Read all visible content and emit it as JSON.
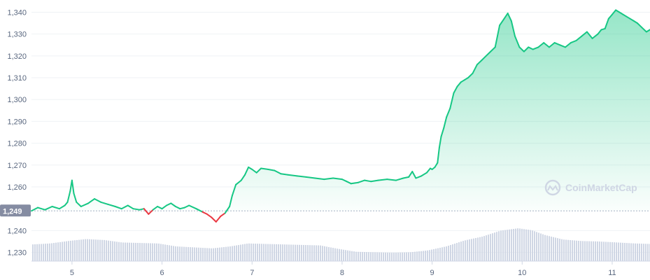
{
  "chart_data": {
    "type": "area",
    "y_ticks": [
      "1,230",
      "1,240",
      "1,249",
      "1,260",
      "1,270",
      "1,280",
      "1,290",
      "1,300",
      "1,310",
      "1,320",
      "1,330",
      "1,340"
    ],
    "ylim": [
      1226,
      1344
    ],
    "y_tick_values": [
      1230,
      1240,
      1260,
      1270,
      1280,
      1290,
      1300,
      1310,
      1320,
      1330,
      1340
    ],
    "y_tick_labels": [
      "1,230",
      "1,240",
      "1,260",
      "1,270",
      "1,280",
      "1,290",
      "1,300",
      "1,310",
      "1,320",
      "1,330",
      "1,340"
    ],
    "x_ticks": [
      "5",
      "6",
      "7",
      "8",
      "9",
      "10",
      "11"
    ],
    "x_tick_values": [
      5,
      6,
      7,
      8,
      9,
      10,
      11
    ],
    "xlim": [
      4.55,
      11.42
    ],
    "baseline": 1249,
    "baseline_label": "1,249",
    "grid": true,
    "colors": {
      "up": "#16c784",
      "down": "#ea3943",
      "volume": "#cfd6e4",
      "baseline_tag": "#858ca2"
    },
    "watermark": "CoinMarketCap",
    "price": [
      [
        4.55,
        1249.0
      ],
      [
        4.62,
        1250.5
      ],
      [
        4.7,
        1249.5
      ],
      [
        4.78,
        1251.0
      ],
      [
        4.86,
        1250.0
      ],
      [
        4.92,
        1251.5
      ],
      [
        4.95,
        1253.0
      ],
      [
        4.98,
        1258.0
      ],
      [
        5.0,
        1263.0
      ],
      [
        5.02,
        1257.0
      ],
      [
        5.05,
        1253.0
      ],
      [
        5.1,
        1251.0
      ],
      [
        5.18,
        1252.5
      ],
      [
        5.25,
        1254.5
      ],
      [
        5.32,
        1253.0
      ],
      [
        5.4,
        1252.0
      ],
      [
        5.48,
        1251.0
      ],
      [
        5.55,
        1250.0
      ],
      [
        5.62,
        1251.5
      ],
      [
        5.68,
        1250.0
      ],
      [
        5.75,
        1249.5
      ],
      [
        5.8,
        1250.0
      ],
      [
        5.85,
        1247.5
      ],
      [
        5.9,
        1249.5
      ],
      [
        5.95,
        1251.0
      ],
      [
        6.0,
        1250.0
      ],
      [
        6.05,
        1251.5
      ],
      [
        6.1,
        1252.5
      ],
      [
        6.15,
        1251.0
      ],
      [
        6.2,
        1250.0
      ],
      [
        6.25,
        1250.5
      ],
      [
        6.3,
        1251.5
      ],
      [
        6.38,
        1250.0
      ],
      [
        6.45,
        1248.5
      ],
      [
        6.5,
        1247.5
      ],
      [
        6.55,
        1246.0
      ],
      [
        6.6,
        1244.0
      ],
      [
        6.65,
        1246.5
      ],
      [
        6.7,
        1248.0
      ],
      [
        6.75,
        1251.0
      ],
      [
        6.78,
        1256.0
      ],
      [
        6.82,
        1261.0
      ],
      [
        6.88,
        1263.0
      ],
      [
        6.92,
        1265.5
      ],
      [
        6.96,
        1269.0
      ],
      [
        7.0,
        1268.0
      ],
      [
        7.05,
        1266.5
      ],
      [
        7.1,
        1268.5
      ],
      [
        7.18,
        1268.0
      ],
      [
        7.25,
        1267.5
      ],
      [
        7.32,
        1266.0
      ],
      [
        7.4,
        1265.5
      ],
      [
        7.5,
        1265.0
      ],
      [
        7.6,
        1264.5
      ],
      [
        7.7,
        1264.0
      ],
      [
        7.8,
        1263.5
      ],
      [
        7.9,
        1264.0
      ],
      [
        8.0,
        1263.5
      ],
      [
        8.05,
        1262.5
      ],
      [
        8.1,
        1261.5
      ],
      [
        8.18,
        1262.0
      ],
      [
        8.25,
        1263.0
      ],
      [
        8.32,
        1262.5
      ],
      [
        8.4,
        1263.0
      ],
      [
        8.5,
        1263.5
      ],
      [
        8.6,
        1263.0
      ],
      [
        8.68,
        1264.0
      ],
      [
        8.74,
        1264.5
      ],
      [
        8.78,
        1267.0
      ],
      [
        8.82,
        1264.0
      ],
      [
        8.88,
        1265.0
      ],
      [
        8.94,
        1266.5
      ],
      [
        8.98,
        1268.5
      ],
      [
        9.0,
        1268.0
      ],
      [
        9.03,
        1269.0
      ],
      [
        9.06,
        1271.0
      ],
      [
        9.08,
        1278.0
      ],
      [
        9.1,
        1283.0
      ],
      [
        9.13,
        1287.0
      ],
      [
        9.16,
        1292.0
      ],
      [
        9.2,
        1296.0
      ],
      [
        9.24,
        1303.0
      ],
      [
        9.28,
        1306.0
      ],
      [
        9.32,
        1308.0
      ],
      [
        9.36,
        1309.0
      ],
      [
        9.4,
        1310.0
      ],
      [
        9.45,
        1312.0
      ],
      [
        9.5,
        1316.0
      ],
      [
        9.55,
        1318.0
      ],
      [
        9.6,
        1320.0
      ],
      [
        9.65,
        1322.0
      ],
      [
        9.7,
        1324.0
      ],
      [
        9.75,
        1334.0
      ],
      [
        9.8,
        1337.0
      ],
      [
        9.84,
        1339.5
      ],
      [
        9.88,
        1336.0
      ],
      [
        9.92,
        1329.0
      ],
      [
        9.97,
        1324.0
      ],
      [
        10.02,
        1322.0
      ],
      [
        10.07,
        1324.0
      ],
      [
        10.12,
        1323.0
      ],
      [
        10.18,
        1324.0
      ],
      [
        10.24,
        1326.0
      ],
      [
        10.3,
        1324.0
      ],
      [
        10.36,
        1326.0
      ],
      [
        10.42,
        1325.0
      ],
      [
        10.48,
        1324.0
      ],
      [
        10.54,
        1326.0
      ],
      [
        10.6,
        1327.0
      ],
      [
        10.66,
        1329.0
      ],
      [
        10.72,
        1331.0
      ],
      [
        10.78,
        1328.0
      ],
      [
        10.84,
        1330.0
      ],
      [
        10.88,
        1332.0
      ],
      [
        10.92,
        1332.5
      ],
      [
        10.96,
        1337.0
      ],
      [
        11.0,
        1339.0
      ],
      [
        11.04,
        1341.0
      ],
      [
        11.08,
        1340.0
      ],
      [
        11.12,
        1339.0
      ],
      [
        11.16,
        1338.0
      ],
      [
        11.2,
        1337.0
      ],
      [
        11.24,
        1336.0
      ],
      [
        11.28,
        1335.0
      ],
      [
        11.33,
        1333.0
      ],
      [
        11.38,
        1331.0
      ],
      [
        11.42,
        1332.0
      ]
    ],
    "volume": [
      [
        4.55,
        0.34
      ],
      [
        4.75,
        0.36
      ],
      [
        4.95,
        0.41
      ],
      [
        5.15,
        0.45
      ],
      [
        5.35,
        0.43
      ],
      [
        5.55,
        0.38
      ],
      [
        5.75,
        0.37
      ],
      [
        5.95,
        0.36
      ],
      [
        6.15,
        0.3
      ],
      [
        6.35,
        0.28
      ],
      [
        6.55,
        0.26
      ],
      [
        6.75,
        0.3
      ],
      [
        6.95,
        0.36
      ],
      [
        7.15,
        0.35
      ],
      [
        7.35,
        0.34
      ],
      [
        7.55,
        0.33
      ],
      [
        7.75,
        0.32
      ],
      [
        7.95,
        0.25
      ],
      [
        8.15,
        0.19
      ],
      [
        8.35,
        0.18
      ],
      [
        8.55,
        0.17
      ],
      [
        8.75,
        0.18
      ],
      [
        8.95,
        0.22
      ],
      [
        9.15,
        0.3
      ],
      [
        9.35,
        0.42
      ],
      [
        9.55,
        0.5
      ],
      [
        9.75,
        0.62
      ],
      [
        9.95,
        0.67
      ],
      [
        10.1,
        0.63
      ],
      [
        10.25,
        0.53
      ],
      [
        10.45,
        0.44
      ],
      [
        10.65,
        0.41
      ],
      [
        10.85,
        0.4
      ],
      [
        11.05,
        0.38
      ],
      [
        11.25,
        0.36
      ],
      [
        11.42,
        0.35
      ]
    ]
  }
}
